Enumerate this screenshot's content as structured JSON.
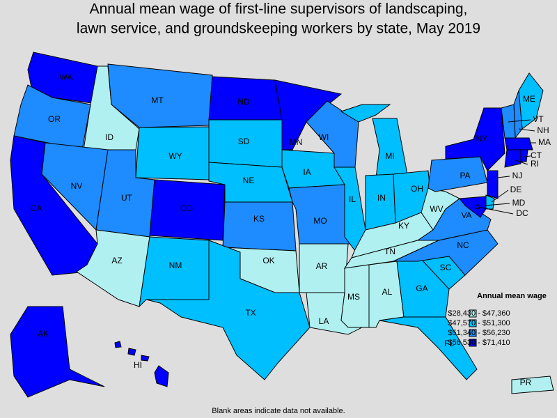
{
  "title": [
    "Annual mean wage of first-line supervisors of landscaping,",
    "lawn service, and groundskeeping workers by state, May 2019"
  ],
  "legend": {
    "title": "Annual mean wage",
    "items": [
      {
        "label": "$28,430 - $47,360",
        "color": "#b0f0f0"
      },
      {
        "label": "$47,570 - $51,300",
        "color": "#00bfff"
      },
      {
        "label": "$51,340 - $56,230",
        "color": "#1e8cff"
      },
      {
        "label": "$56,530 - $71,410",
        "color": "#0000ff"
      }
    ]
  },
  "states": [
    {
      "label": "WA",
      "color": "#0000ff"
    },
    {
      "label": "OR",
      "color": "#1e8cff"
    },
    {
      "label": "CA",
      "color": "#0000ff"
    },
    {
      "label": "ID",
      "color": "#b0f0f0"
    },
    {
      "label": "NV",
      "color": "#1e8cff"
    },
    {
      "label": "MT",
      "color": "#1e8cff"
    },
    {
      "label": "WY",
      "color": "#00bfff"
    },
    {
      "label": "UT",
      "color": "#1e8cff"
    },
    {
      "label": "CO",
      "color": "#0000ff"
    },
    {
      "label": "AZ",
      "color": "#b0f0f0"
    },
    {
      "label": "NM",
      "color": "#00bfff"
    },
    {
      "label": "ND",
      "color": "#0000ff"
    },
    {
      "label": "SD",
      "color": "#00bfff"
    },
    {
      "label": "NE",
      "color": "#00bfff"
    },
    {
      "label": "KS",
      "color": "#1e8cff"
    },
    {
      "label": "OK",
      "color": "#b0f0f0"
    },
    {
      "label": "TX",
      "color": "#00bfff"
    },
    {
      "label": "MN",
      "color": "#0000ff"
    },
    {
      "label": "IA",
      "color": "#00bfff"
    },
    {
      "label": "MO",
      "color": "#1e8cff"
    },
    {
      "label": "AR",
      "color": "#b0f0f0"
    },
    {
      "label": "LA",
      "color": "#b0f0f0"
    },
    {
      "label": "WI",
      "color": "#1e8cff"
    },
    {
      "label": "IL",
      "color": "#00bfff"
    },
    {
      "label": "MI",
      "color": "#00bfff"
    },
    {
      "label": "IN",
      "color": "#00bfff"
    },
    {
      "label": "OH",
      "color": "#00bfff"
    },
    {
      "label": "KY",
      "color": "#b0f0f0"
    },
    {
      "label": "TN",
      "color": "#b0f0f0"
    },
    {
      "label": "MS",
      "color": "#b0f0f0"
    },
    {
      "label": "AL",
      "color": "#b0f0f0"
    },
    {
      "label": "GA",
      "color": "#00bfff"
    },
    {
      "label": "FL",
      "color": "#00bfff"
    },
    {
      "label": "SC",
      "color": "#00bfff"
    },
    {
      "label": "NC",
      "color": "#1e8cff"
    },
    {
      "label": "VA",
      "color": "#1e8cff"
    },
    {
      "label": "WV",
      "color": "#b0f0f0"
    },
    {
      "label": "PA",
      "color": "#1e8cff"
    },
    {
      "label": "NY",
      "color": "#0000ff"
    },
    {
      "label": "ME",
      "color": "#00bfff"
    },
    {
      "label": "NH",
      "color": "#1e8cff"
    },
    {
      "label": "VT",
      "color": "#1e8cff"
    },
    {
      "label": "MA",
      "color": "#0000ff"
    },
    {
      "label": "CT",
      "color": "#0000ff"
    },
    {
      "label": "RI",
      "color": "#0000ff"
    },
    {
      "label": "NJ",
      "color": "#0000ff"
    },
    {
      "label": "DE",
      "color": "#00bfff"
    },
    {
      "label": "MD",
      "color": "#0000ff"
    },
    {
      "label": "DC",
      "color": "#0000ff"
    },
    {
      "label": "AK",
      "color": "#0000ff"
    },
    {
      "label": "HI",
      "color": "#0000ff"
    },
    {
      "label": "PR",
      "color": "#b0f0f0"
    }
  ],
  "footnote": "Blank areas indicate data not available."
}
